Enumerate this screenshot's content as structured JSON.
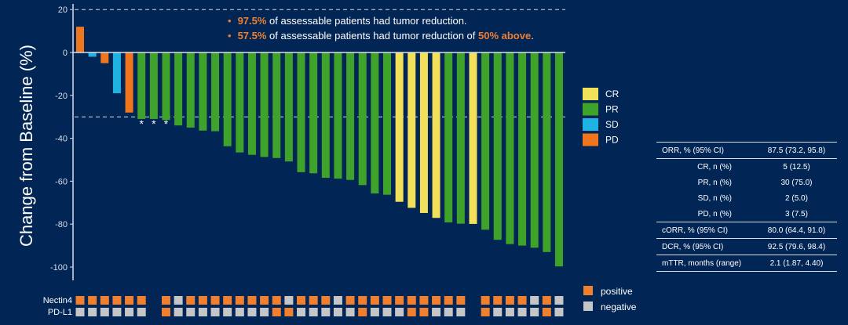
{
  "colors": {
    "background": "#012656",
    "CR": "#f2e05a",
    "PR": "#3fa22b",
    "SD": "#1fb3e3",
    "PD": "#f0761e",
    "positive": "#f07f2e",
    "negative": "#c4c6c8",
    "highlight": "#f07f2e"
  },
  "chart_data": {
    "type": "bar",
    "ylabel": "Change from Baseline (%)",
    "ylim": [
      -105,
      22
    ],
    "yticks": [
      20,
      0,
      -20,
      -40,
      -60,
      -80,
      -100
    ],
    "ytick_labels": [
      "20",
      "0",
      "-20",
      "-40",
      "-60",
      "-80",
      "-100"
    ],
    "reference_lines": [
      20,
      -30
    ],
    "values": [
      12,
      -2,
      -5,
      -19,
      -28,
      -31,
      -31,
      -31.5,
      -34,
      -35,
      -36.4,
      -36.7,
      -43.7,
      -46.6,
      -47.7,
      -48.7,
      -49.2,
      -50.8,
      -55.8,
      -56.3,
      -58.4,
      -58.8,
      -59.4,
      -61.8,
      -65.7,
      -66.3,
      -69.6,
      -72.4,
      -74.8,
      -77.1,
      -79.2,
      -79.8,
      -79.9,
      -82.6,
      -87.3,
      -89.3,
      -90,
      -91,
      -93,
      -99.7
    ],
    "response": [
      "PD",
      "SD",
      "PD",
      "SD",
      "PD",
      "PR",
      "PR",
      "PR",
      "PR",
      "PR",
      "PR",
      "PR",
      "PR",
      "PR",
      "PR",
      "PR",
      "PR",
      "PR",
      "PR",
      "PR",
      "PR",
      "PR",
      "PR",
      "PR",
      "PR",
      "PR",
      "CR",
      "CR",
      "CR",
      "CR",
      "PR",
      "PR",
      "CR",
      "PR",
      "PR",
      "PR",
      "PR",
      "PR",
      "PR",
      "PR"
    ],
    "asterisk_bars": [
      6,
      7,
      8
    ],
    "asterisk": "*",
    "legend": {
      "entries": [
        "CR",
        "PR",
        "SD",
        "PD"
      ],
      "placement": "right"
    },
    "biomarker_rows": [
      {
        "label": "Nectin4",
        "status": [
          "P",
          "P",
          "P",
          "P",
          "P",
          "P",
          null,
          "P",
          "N",
          "P",
          "P",
          "P",
          "P",
          "P",
          "P",
          "P",
          "P",
          "N",
          "P",
          "P",
          "P",
          "N",
          "P",
          "P",
          "P",
          "P",
          "P",
          "P",
          "P",
          "P",
          "P",
          "P",
          null,
          "P",
          "P",
          "P",
          "P",
          "N",
          "P",
          "N"
        ]
      },
      {
        "label": "PD-L1",
        "status": [
          "N",
          "N",
          "N",
          "N",
          "N",
          "N",
          null,
          "P",
          "N",
          "N",
          "N",
          "N",
          "N",
          "N",
          "N",
          "N",
          "P",
          "P",
          "N",
          "N",
          "N",
          "N",
          "N",
          "P",
          "N",
          "N",
          "N",
          "P",
          "P",
          "N",
          "N",
          "N",
          null,
          "P",
          "N",
          "N",
          "N",
          "N",
          "P",
          "N"
        ]
      }
    ],
    "biomarker_legend": [
      "positive",
      "negative"
    ]
  },
  "annotations": [
    {
      "bullet": "•",
      "highlight": "97.5%",
      "text": " of assessable patients had tumor reduction.",
      "highlight2": "",
      "tail": ""
    },
    {
      "bullet": "•",
      "highlight": "57.5%",
      "text": " of assessable patients had tumor reduction of ",
      "highlight2": "50% above",
      "tail": "."
    }
  ],
  "table": {
    "rows": [
      {
        "label": "ORR, % (95% CI)",
        "value": "87.5 (73.2, 95.8)",
        "indent": false,
        "sep": true
      },
      {
        "label": "CR, n (%)",
        "value": "5 (12.5)",
        "indent": true,
        "sep": true
      },
      {
        "label": "PR, n (%)",
        "value": "30 (75.0)",
        "indent": true,
        "sep": false
      },
      {
        "label": "SD, n (%)",
        "value": "2 (5.0)",
        "indent": true,
        "sep": false
      },
      {
        "label": "PD, n (%)",
        "value": "3 (7.5)",
        "indent": true,
        "sep": false
      },
      {
        "label": "cORR, % (95% CI)",
        "value": "80.0 (64.4, 91.0)",
        "indent": false,
        "sep": true
      },
      {
        "label": "DCR, % (95% CI)",
        "value": "92.5 (79.6, 98.4)",
        "indent": false,
        "sep": true
      },
      {
        "label": "mTTR, months (range)",
        "value": "2.1 (1.87, 4.40)",
        "indent": false,
        "sep": true
      }
    ]
  }
}
